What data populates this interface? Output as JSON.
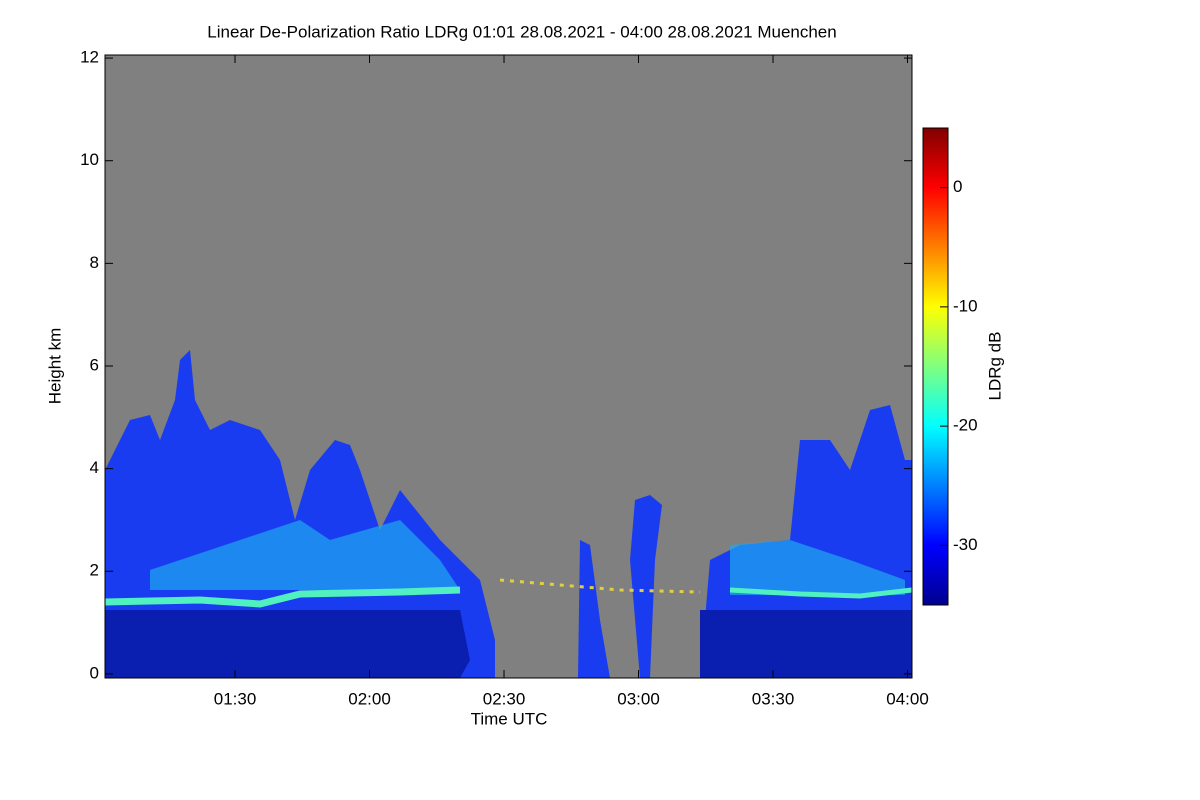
{
  "chart_data": {
    "type": "heatmap",
    "title": "Linear De-Polarization Ratio LDRg   01:01 28.08.2021 - 04:00 28.08.2021 Muenchen",
    "x_label": "Time UTC",
    "y_label": "Height km",
    "colorbar_label": "LDRg dB",
    "xlim": [
      61,
      241
    ],
    "xticks": [
      {
        "value": 90,
        "label": "01:30"
      },
      {
        "value": 120,
        "label": "02:00"
      },
      {
        "value": 150,
        "label": "02:30"
      },
      {
        "value": 180,
        "label": "03:00"
      },
      {
        "value": 210,
        "label": "03:30"
      },
      {
        "value": 240,
        "label": "04:00"
      }
    ],
    "ylim": [
      -0.08,
      12.06
    ],
    "yticks": [
      0,
      2,
      4,
      6,
      8,
      10,
      12
    ],
    "zlim": [
      -35,
      5
    ],
    "zticks": [
      0,
      -10,
      -20,
      -30
    ],
    "colormap": "jet",
    "missing_color": "#808080"
  }
}
